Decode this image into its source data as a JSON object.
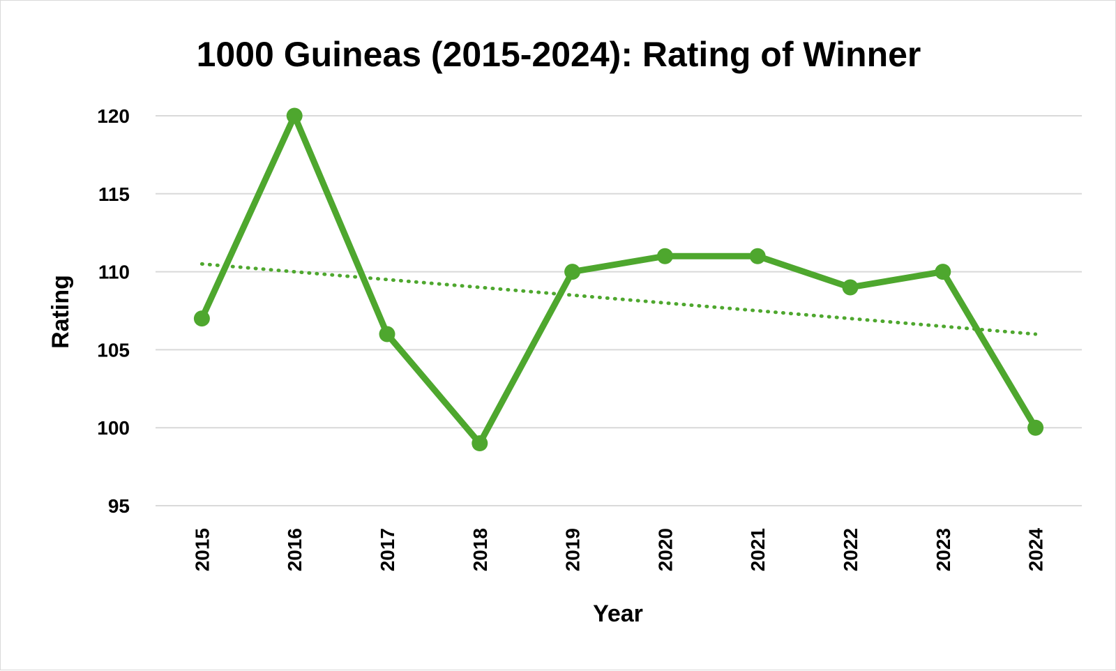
{
  "chart_data": {
    "type": "line",
    "title": "1000 Guineas (2015-2024): Rating of Winner",
    "xlabel": "Year",
    "ylabel": "Rating",
    "categories": [
      "2015",
      "2016",
      "2017",
      "2018",
      "2019",
      "2020",
      "2021",
      "2022",
      "2023",
      "2024"
    ],
    "series": [
      {
        "values": [
          107,
          120,
          106,
          99,
          110,
          111,
          111,
          109,
          110,
          100
        ],
        "color": "#4ea72e",
        "marker": "circle"
      }
    ],
    "trendline": {
      "type": "linear",
      "style": "dotted",
      "color": "#4ea72e",
      "start_value": 110.5,
      "end_value": 106
    },
    "ylim": [
      95,
      120
    ],
    "yticks": [
      "95",
      "100",
      "105",
      "110",
      "115",
      "120"
    ],
    "grid": "horizontal",
    "gridline_color": "#d9d9d9",
    "legend": "none"
  }
}
